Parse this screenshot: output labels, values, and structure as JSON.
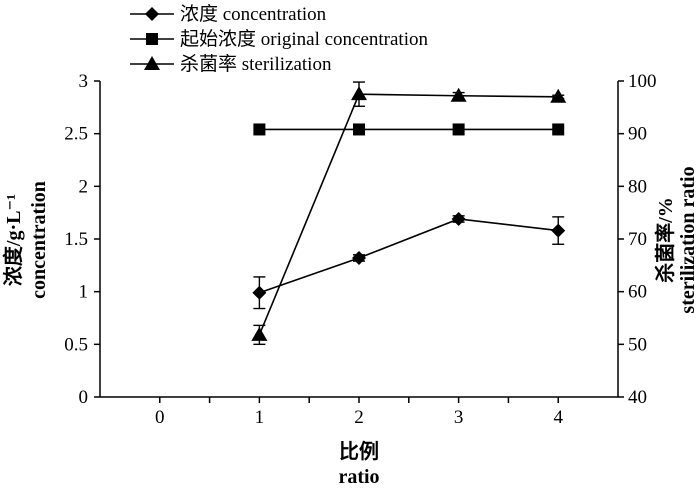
{
  "chart_data": {
    "type": "line",
    "x": [
      1,
      2,
      3,
      4
    ],
    "x_ticks": [
      "0",
      "1",
      "2",
      "3",
      "4"
    ],
    "xlim": [
      -0.6,
      4.6
    ],
    "xlabel": [
      "比例",
      "ratio"
    ],
    "y_left": {
      "label": [
        "浓度/g·L⁻¹",
        "concentration"
      ],
      "ylim": [
        0,
        3
      ],
      "ticks": [
        "0",
        "0.5",
        "1",
        "1.5",
        "2",
        "2.5",
        "3"
      ]
    },
    "y_right": {
      "label": [
        "杀菌率/%",
        "sterilization ratio"
      ],
      "ylim": [
        40,
        100
      ],
      "ticks": [
        "40",
        "50",
        "60",
        "70",
        "80",
        "90",
        "100"
      ]
    },
    "series": [
      {
        "name": "浓度 concentration",
        "axis": "left",
        "marker": "diamond",
        "values": [
          0.99,
          1.32,
          1.69,
          1.58
        ],
        "errors": [
          0.15,
          0.03,
          0.03,
          0.13
        ]
      },
      {
        "name": "起始浓度 original concentration",
        "axis": "left",
        "marker": "square",
        "values": [
          2.54,
          2.54,
          2.54,
          2.54
        ],
        "errors": [
          0,
          0,
          0,
          0
        ]
      },
      {
        "name": "杀菌率 sterilization",
        "axis": "right",
        "marker": "triangle",
        "values": [
          51.8,
          97.5,
          97.2,
          97.0
        ],
        "errors": [
          1.8,
          2.3,
          0.6,
          0.3
        ]
      }
    ],
    "legend_position": "top-left",
    "grid": false
  }
}
